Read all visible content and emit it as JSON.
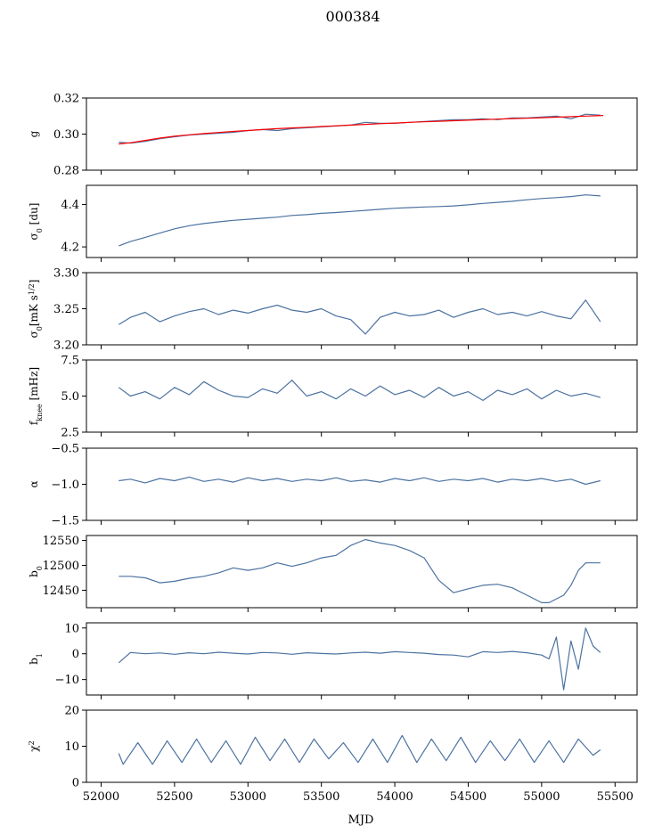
{
  "figure": {
    "title": "000384",
    "xlabel": "MJD"
  },
  "chart_data": {
    "type": "line",
    "sharex": true,
    "xlim": [
      51900,
      55650
    ],
    "xticks": [
      52000,
      52500,
      53000,
      53500,
      54000,
      54500,
      55000,
      55500
    ],
    "xtick_labels": [
      "52000",
      "52500",
      "53000",
      "53500",
      "54000",
      "54500",
      "55000",
      "55500"
    ],
    "xlabel": "MJD",
    "panels": [
      {
        "id": "g",
        "ylabel": "g",
        "ylim": [
          0.28,
          0.32
        ],
        "yticks": [
          0.28,
          0.3,
          0.32
        ],
        "ytick_labels": [
          "0.28",
          "0.30",
          "0.32"
        ],
        "series": [
          {
            "color": "#4c72a0",
            "width": 1.2,
            "x": [
              52120,
              52200,
              52300,
              52400,
              52500,
              52600,
              52700,
              52800,
              52900,
              53000,
              53100,
              53200,
              53300,
              53400,
              53500,
              53600,
              53700,
              53800,
              53900,
              54000,
              54100,
              54200,
              54300,
              54400,
              54500,
              54600,
              54700,
              54800,
              54900,
              55000,
              55100,
              55200,
              55300,
              55400
            ],
            "y": [
              0.2955,
              0.295,
              0.296,
              0.2975,
              0.2985,
              0.2995,
              0.3,
              0.3005,
              0.301,
              0.302,
              0.3025,
              0.302,
              0.303,
              0.3035,
              0.304,
              0.3045,
              0.305,
              0.3065,
              0.306,
              0.306,
              0.3065,
              0.307,
              0.3075,
              0.308,
              0.308,
              0.3085,
              0.308,
              0.309,
              0.309,
              0.3095,
              0.31,
              0.3085,
              0.311,
              0.3105
            ]
          },
          {
            "color": "#ff0000",
            "width": 2.6,
            "x": [
              52120,
              52200,
              52300,
              52400,
              52500,
              52600,
              52700,
              52800,
              52900,
              53000,
              53100,
              53200,
              53300,
              53400,
              53500,
              53600,
              53700,
              53800,
              53900,
              54000,
              54100,
              54200,
              54300,
              54400,
              54500,
              54600,
              54700,
              54800,
              54900,
              55000,
              55100,
              55200,
              55300,
              55420
            ],
            "y": [
              0.2945,
              0.2952,
              0.2965,
              0.2978,
              0.2988,
              0.2996,
              0.3003,
              0.3009,
              0.3015,
              0.302,
              0.3025,
              0.303,
              0.3034,
              0.3038,
              0.3042,
              0.3046,
              0.305,
              0.3054,
              0.3058,
              0.3061,
              0.3065,
              0.3068,
              0.3071,
              0.3074,
              0.3077,
              0.308,
              0.3083,
              0.3086,
              0.3088,
              0.3091,
              0.3094,
              0.3097,
              0.31,
              0.3103
            ]
          }
        ]
      },
      {
        "id": "sigma0-du",
        "ylabel": "σ0 [du]",
        "ylim": [
          4.15,
          4.49
        ],
        "yticks": [
          4.2,
          4.4
        ],
        "ytick_labels": [
          "4.2",
          "4.4"
        ],
        "series": [
          {
            "color": "#4c72a0",
            "width": 1.2,
            "x": [
              52120,
              52200,
              52300,
              52400,
              52500,
              52600,
              52700,
              52800,
              52900,
              53000,
              53100,
              53200,
              53300,
              53400,
              53500,
              53600,
              53700,
              53800,
              53900,
              54000,
              54100,
              54200,
              54300,
              54400,
              54500,
              54600,
              54700,
              54800,
              54900,
              55000,
              55100,
              55200,
              55300,
              55400
            ],
            "y": [
              4.205,
              4.225,
              4.245,
              4.265,
              4.285,
              4.3,
              4.31,
              4.318,
              4.325,
              4.33,
              4.335,
              4.34,
              4.348,
              4.352,
              4.358,
              4.362,
              4.367,
              4.372,
              4.377,
              4.382,
              4.385,
              4.388,
              4.39,
              4.393,
              4.398,
              4.405,
              4.41,
              4.415,
              4.422,
              4.428,
              4.432,
              4.437,
              4.445,
              4.44
            ]
          }
        ]
      },
      {
        "id": "sigma0-mks",
        "ylabel": "σ0[mK s^1/2]",
        "ylim": [
          3.2,
          3.3
        ],
        "yticks": [
          3.2,
          3.25,
          3.3
        ],
        "ytick_labels": [
          "3.20",
          "3.25",
          "3.30"
        ],
        "series": [
          {
            "color": "#4c72a0",
            "width": 1.2,
            "x": [
              52120,
              52200,
              52300,
              52400,
              52500,
              52600,
              52700,
              52800,
              52900,
              53000,
              53100,
              53200,
              53300,
              53400,
              53500,
              53600,
              53700,
              53800,
              53900,
              54000,
              54100,
              54200,
              54300,
              54400,
              54500,
              54600,
              54700,
              54800,
              54900,
              55000,
              55100,
              55200,
              55300,
              55400
            ],
            "y": [
              3.228,
              3.238,
              3.245,
              3.232,
              3.24,
              3.246,
              3.25,
              3.242,
              3.248,
              3.244,
              3.25,
              3.255,
              3.248,
              3.245,
              3.25,
              3.24,
              3.235,
              3.215,
              3.238,
              3.245,
              3.24,
              3.242,
              3.248,
              3.238,
              3.245,
              3.25,
              3.242,
              3.245,
              3.24,
              3.246,
              3.24,
              3.236,
              3.262,
              3.232
            ]
          }
        ]
      },
      {
        "id": "fknee",
        "ylabel": "f_knee [mHz]",
        "ylim": [
          2.5,
          7.5
        ],
        "yticks": [
          2.5,
          5.0,
          7.5
        ],
        "ytick_labels": [
          "2.5",
          "5.0",
          "7.5"
        ],
        "series": [
          {
            "color": "#4c72a0",
            "width": 1.2,
            "x": [
              52120,
              52200,
              52300,
              52400,
              52500,
              52600,
              52700,
              52800,
              52900,
              53000,
              53100,
              53200,
              53300,
              53400,
              53500,
              53600,
              53700,
              53800,
              53900,
              54000,
              54100,
              54200,
              54300,
              54400,
              54500,
              54600,
              54700,
              54800,
              54900,
              55000,
              55100,
              55200,
              55300,
              55400
            ],
            "y": [
              5.6,
              5.0,
              5.3,
              4.8,
              5.6,
              5.1,
              6.0,
              5.4,
              5.0,
              4.9,
              5.5,
              5.2,
              6.1,
              5.0,
              5.3,
              4.8,
              5.5,
              5.0,
              5.7,
              5.1,
              5.4,
              4.9,
              5.6,
              5.0,
              5.3,
              4.7,
              5.4,
              5.1,
              5.5,
              4.8,
              5.4,
              5.0,
              5.2,
              4.9
            ]
          }
        ]
      },
      {
        "id": "alpha",
        "ylabel": "α",
        "ylim": [
          -1.5,
          -0.5
        ],
        "yticks": [
          -1.5,
          -1.0,
          -0.5
        ],
        "ytick_labels": [
          "−1.5",
          "−1.0",
          "−0.5"
        ],
        "series": [
          {
            "color": "#4c72a0",
            "width": 1.2,
            "x": [
              52120,
              52200,
              52300,
              52400,
              52500,
              52600,
              52700,
              52800,
              52900,
              53000,
              53100,
              53200,
              53300,
              53400,
              53500,
              53600,
              53700,
              53800,
              53900,
              54000,
              54100,
              54200,
              54300,
              54400,
              54500,
              54600,
              54700,
              54800,
              54900,
              55000,
              55100,
              55200,
              55300,
              55400
            ],
            "y": [
              -0.95,
              -0.93,
              -0.98,
              -0.92,
              -0.95,
              -0.9,
              -0.96,
              -0.93,
              -0.97,
              -0.91,
              -0.95,
              -0.92,
              -0.96,
              -0.93,
              -0.95,
              -0.91,
              -0.96,
              -0.94,
              -0.97,
              -0.92,
              -0.95,
              -0.91,
              -0.96,
              -0.93,
              -0.95,
              -0.92,
              -0.97,
              -0.93,
              -0.95,
              -0.92,
              -0.96,
              -0.93,
              -1.0,
              -0.95
            ]
          }
        ]
      },
      {
        "id": "b0",
        "ylabel": "b0",
        "ylim": [
          12415,
          12560
        ],
        "yticks": [
          12450,
          12500,
          12550
        ],
        "ytick_labels": [
          "12450",
          "12500",
          "12550"
        ],
        "series": [
          {
            "color": "#4c72a0",
            "width": 1.2,
            "x": [
              52120,
              52200,
              52300,
              52400,
              52500,
              52600,
              52700,
              52800,
              52900,
              53000,
              53100,
              53200,
              53300,
              53400,
              53500,
              53600,
              53700,
              53800,
              53900,
              54000,
              54100,
              54200,
              54300,
              54400,
              54500,
              54600,
              54700,
              54800,
              54900,
              55000,
              55050,
              55150,
              55200,
              55250,
              55300,
              55350,
              55400
            ],
            "y": [
              12478,
              12478,
              12475,
              12465,
              12468,
              12474,
              12478,
              12485,
              12495,
              12490,
              12495,
              12505,
              12498,
              12505,
              12515,
              12520,
              12540,
              12552,
              12545,
              12540,
              12530,
              12515,
              12470,
              12445,
              12453,
              12460,
              12462,
              12455,
              12440,
              12425,
              12425,
              12440,
              12460,
              12490,
              12505,
              12505,
              12505
            ]
          }
        ]
      },
      {
        "id": "b1",
        "ylabel": "b1",
        "ylim": [
          -16,
          12
        ],
        "yticks": [
          -10,
          0,
          10
        ],
        "ytick_labels": [
          "−10",
          "0",
          "10"
        ],
        "series": [
          {
            "color": "#4c72a0",
            "width": 1.2,
            "x": [
              52120,
              52200,
              52300,
              52400,
              52500,
              52600,
              52700,
              52800,
              52900,
              53000,
              53100,
              53200,
              53300,
              53400,
              53500,
              53600,
              53700,
              53800,
              53900,
              54000,
              54100,
              54200,
              54300,
              54400,
              54500,
              54600,
              54700,
              54800,
              54900,
              55000,
              55050,
              55100,
              55150,
              55200,
              55250,
              55300,
              55350,
              55400
            ],
            "y": [
              -3.5,
              0.5,
              0.0,
              0.3,
              -0.2,
              0.4,
              0.0,
              0.6,
              0.2,
              -0.1,
              0.5,
              0.3,
              -0.2,
              0.4,
              0.1,
              -0.1,
              0.3,
              0.6,
              0.2,
              0.8,
              0.5,
              0.2,
              -0.3,
              -0.5,
              -1.2,
              0.8,
              0.5,
              0.9,
              0.4,
              -0.5,
              -2.0,
              6.5,
              -14.0,
              5.0,
              -6.0,
              10.0,
              3.0,
              0.5
            ]
          }
        ]
      },
      {
        "id": "chi2",
        "ylabel": "χ2",
        "ylim": [
          0,
          20
        ],
        "yticks": [
          0,
          10,
          20
        ],
        "ytick_labels": [
          "0",
          "10",
          "20"
        ],
        "series": [
          {
            "color": "#4c72a0",
            "width": 1.2,
            "x": [
              52120,
              52150,
              52250,
              52350,
              52450,
              52550,
              52650,
              52750,
              52850,
              52950,
              53050,
              53150,
              53250,
              53350,
              53450,
              53550,
              53650,
              53750,
              53850,
              53950,
              54050,
              54150,
              54250,
              54350,
              54450,
              54550,
              54650,
              54750,
              54850,
              54950,
              55050,
              55150,
              55250,
              55350,
              55400
            ],
            "y": [
              8.0,
              5.0,
              11.0,
              5.0,
              11.5,
              5.5,
              12.0,
              5.5,
              11.5,
              5.0,
              12.5,
              6.0,
              12.0,
              5.5,
              12.0,
              6.5,
              11.0,
              5.5,
              12.0,
              5.5,
              13.0,
              5.5,
              12.0,
              6.0,
              12.5,
              5.5,
              11.5,
              6.0,
              12.0,
              5.5,
              11.5,
              5.5,
              12.0,
              7.5,
              9.0
            ]
          }
        ]
      }
    ]
  }
}
